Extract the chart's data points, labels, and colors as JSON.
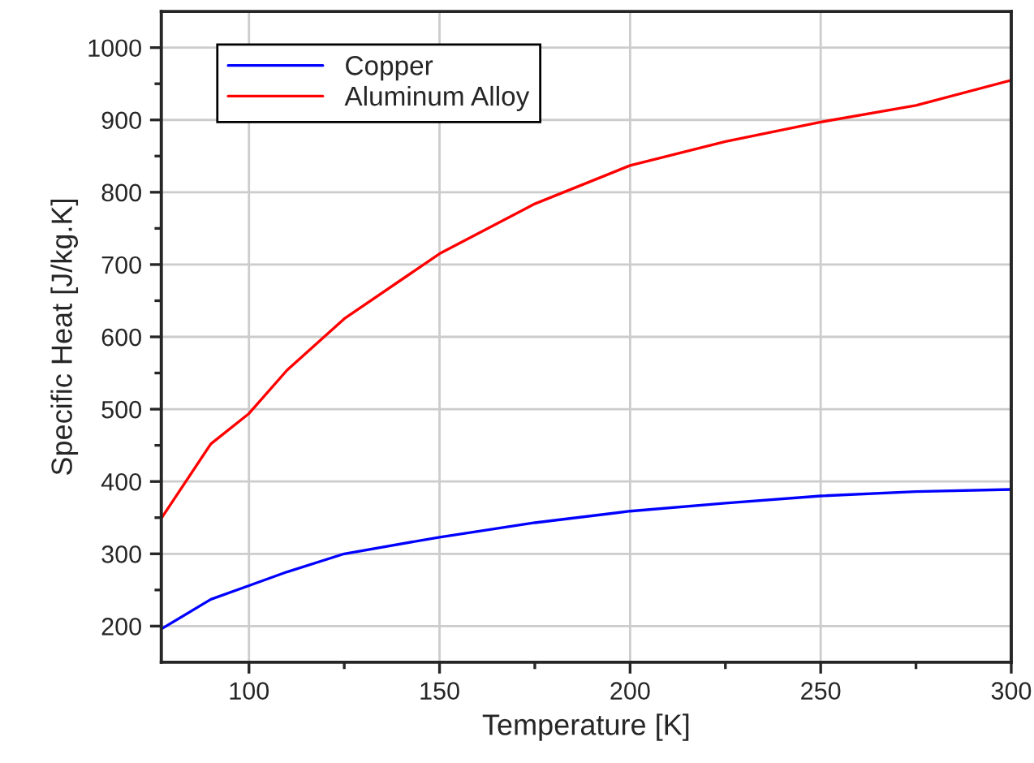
{
  "chart_data": {
    "type": "line",
    "xlabel": "Temperature [K]",
    "ylabel": "Specific Heat [J/kg.K]",
    "x": [
      77,
      90,
      100,
      110,
      125,
      150,
      175,
      200,
      225,
      250,
      275,
      300
    ],
    "series": [
      {
        "name": "Copper",
        "color": "#0000ff",
        "values": [
          196,
          237,
          256,
          275,
          300,
          323,
          343,
          359,
          370,
          380,
          386,
          389
        ]
      },
      {
        "name": "Aluminum Alloy",
        "color": "#ff0000",
        "values": [
          349,
          452,
          494,
          554,
          625,
          715,
          784,
          837,
          870,
          897,
          920,
          955
        ]
      }
    ],
    "xlim": [
      77,
      300
    ],
    "ylim": [
      150,
      1050
    ],
    "xticks": [
      100,
      {
        "value": 125,
        "label": null
      },
      150,
      {
        "value": 175,
        "label": null
      },
      200,
      {
        "value": 225,
        "label": null
      },
      250,
      {
        "value": 275,
        "label": null
      },
      300
    ],
    "yticks": [
      200,
      {
        "value": 250,
        "label": null
      },
      300,
      {
        "value": 350,
        "label": null
      },
      400,
      {
        "value": 450,
        "label": null
      },
      500,
      {
        "value": 550,
        "label": null
      },
      600,
      {
        "value": 650,
        "label": null
      },
      700,
      {
        "value": 750,
        "label": null
      },
      800,
      {
        "value": 850,
        "label": null
      },
      900,
      {
        "value": 950,
        "label": null
      },
      1000
    ],
    "grid": true,
    "legend": "top left",
    "marker": "none",
    "line_style": "solid"
  }
}
